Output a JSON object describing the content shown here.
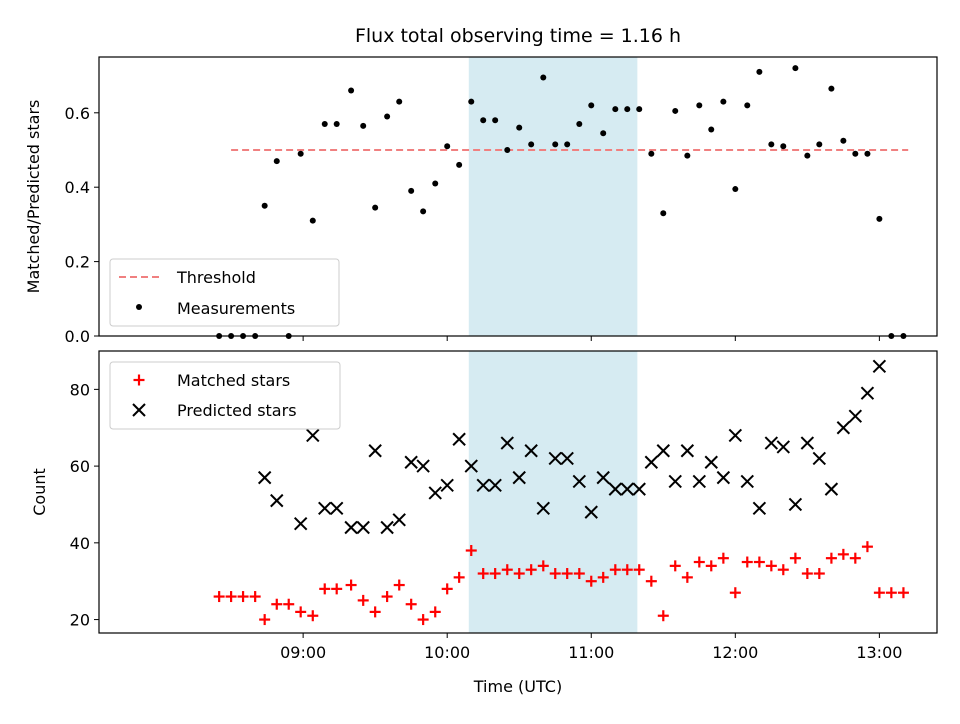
{
  "chart_data": [
    {
      "type": "scatter",
      "title": "Flux total observing time = 1.16 h",
      "xlabel": "",
      "ylabel": "Matched/Predicted stars",
      "ylim": [
        0,
        0.75
      ],
      "yticks": [
        "0.0",
        "0.2",
        "0.4",
        "0.6"
      ],
      "yticks_values": [
        0,
        0.2,
        0.4,
        0.6
      ],
      "threshold": {
        "name": "Threshold",
        "value": 0.5,
        "x_start": 8.5,
        "x_end": 13.2,
        "color": "#f08080"
      },
      "highlight": {
        "x_start": 10.15,
        "x_end": 11.32,
        "color": "#add8e6"
      },
      "legend": {
        "location": "lower-left",
        "entries": [
          "Threshold",
          "Measurements"
        ]
      },
      "series": [
        {
          "name": "Measurements",
          "marker": "dot",
          "color": "#000000",
          "points": [
            [
              8.417,
              0.0
            ],
            [
              8.5,
              0.0
            ],
            [
              8.583,
              0.0
            ],
            [
              8.667,
              0.0
            ],
            [
              8.733,
              0.35
            ],
            [
              8.817,
              0.47
            ],
            [
              8.9,
              0.0
            ],
            [
              8.983,
              0.49
            ],
            [
              9.067,
              0.31
            ],
            [
              9.15,
              0.57
            ],
            [
              9.233,
              0.57
            ],
            [
              9.333,
              0.66
            ],
            [
              9.417,
              0.565
            ],
            [
              9.5,
              0.345
            ],
            [
              9.583,
              0.59
            ],
            [
              9.667,
              0.63
            ],
            [
              9.75,
              0.39
            ],
            [
              9.833,
              0.335
            ],
            [
              9.917,
              0.41
            ],
            [
              10.0,
              0.51
            ],
            [
              10.083,
              0.46
            ],
            [
              10.167,
              0.63
            ],
            [
              10.25,
              0.58
            ],
            [
              10.333,
              0.58
            ],
            [
              10.417,
              0.5
            ],
            [
              10.5,
              0.56
            ],
            [
              10.583,
              0.515
            ],
            [
              10.667,
              0.695
            ],
            [
              10.75,
              0.515
            ],
            [
              10.833,
              0.515
            ],
            [
              10.917,
              0.57
            ],
            [
              11.0,
              0.62
            ],
            [
              11.083,
              0.545
            ],
            [
              11.167,
              0.61
            ],
            [
              11.25,
              0.61
            ],
            [
              11.333,
              0.61
            ],
            [
              11.417,
              0.49
            ],
            [
              11.5,
              0.33
            ],
            [
              11.583,
              0.605
            ],
            [
              11.667,
              0.485
            ],
            [
              11.75,
              0.62
            ],
            [
              11.833,
              0.555
            ],
            [
              11.917,
              0.63
            ],
            [
              12.0,
              0.395
            ],
            [
              12.083,
              0.62
            ],
            [
              12.167,
              0.71
            ],
            [
              12.25,
              0.515
            ],
            [
              12.333,
              0.51
            ],
            [
              12.417,
              0.72
            ],
            [
              12.5,
              0.485
            ],
            [
              12.583,
              0.515
            ],
            [
              12.667,
              0.665
            ],
            [
              12.75,
              0.525
            ],
            [
              12.833,
              0.49
            ],
            [
              12.917,
              0.49
            ],
            [
              13.0,
              0.315
            ],
            [
              13.083,
              0.0
            ],
            [
              13.167,
              0.0
            ]
          ]
        }
      ]
    },
    {
      "type": "scatter",
      "title": "",
      "xlabel": "Time (UTC)",
      "ylabel": "Count",
      "ylim": [
        16.5,
        90
      ],
      "yticks": [
        "20",
        "40",
        "60",
        "80"
      ],
      "yticks_values": [
        20,
        40,
        60,
        80
      ],
      "xlim": [
        7.583,
        13.4
      ],
      "xticks": [
        "09:00",
        "10:00",
        "11:00",
        "12:00",
        "13:00"
      ],
      "xticks_values": [
        9,
        10,
        11,
        12,
        13
      ],
      "highlight": {
        "x_start": 10.15,
        "x_end": 11.32,
        "color": "#add8e6"
      },
      "legend": {
        "location": "upper-left",
        "entries": [
          "Matched stars",
          "Predicted stars"
        ]
      },
      "series": [
        {
          "name": "Matched stars",
          "marker": "plus",
          "color": "#ff0000",
          "points": [
            [
              8.417,
              26
            ],
            [
              8.5,
              26
            ],
            [
              8.583,
              26
            ],
            [
              8.667,
              26
            ],
            [
              8.733,
              20
            ],
            [
              8.817,
              24
            ],
            [
              8.9,
              24
            ],
            [
              8.983,
              22
            ],
            [
              9.067,
              21
            ],
            [
              9.15,
              28
            ],
            [
              9.233,
              28
            ],
            [
              9.333,
              29
            ],
            [
              9.417,
              25
            ],
            [
              9.5,
              22
            ],
            [
              9.583,
              26
            ],
            [
              9.667,
              29
            ],
            [
              9.75,
              24
            ],
            [
              9.833,
              20
            ],
            [
              9.917,
              22
            ],
            [
              10.0,
              28
            ],
            [
              10.083,
              31
            ],
            [
              10.167,
              38
            ],
            [
              10.25,
              32
            ],
            [
              10.333,
              32
            ],
            [
              10.417,
              33
            ],
            [
              10.5,
              32
            ],
            [
              10.583,
              33
            ],
            [
              10.667,
              34
            ],
            [
              10.75,
              32
            ],
            [
              10.833,
              32
            ],
            [
              10.917,
              32
            ],
            [
              11.0,
              30
            ],
            [
              11.083,
              31
            ],
            [
              11.167,
              33
            ],
            [
              11.25,
              33
            ],
            [
              11.333,
              33
            ],
            [
              11.417,
              30
            ],
            [
              11.5,
              21
            ],
            [
              11.583,
              34
            ],
            [
              11.667,
              31
            ],
            [
              11.75,
              35
            ],
            [
              11.833,
              34
            ],
            [
              11.917,
              36
            ],
            [
              12.0,
              27
            ],
            [
              12.083,
              35
            ],
            [
              12.167,
              35
            ],
            [
              12.25,
              34
            ],
            [
              12.333,
              33
            ],
            [
              12.417,
              36
            ],
            [
              12.5,
              32
            ],
            [
              12.583,
              32
            ],
            [
              12.667,
              36
            ],
            [
              12.75,
              37
            ],
            [
              12.833,
              36
            ],
            [
              12.917,
              39
            ],
            [
              13.0,
              27
            ],
            [
              13.083,
              27
            ],
            [
              13.167,
              27
            ]
          ]
        },
        {
          "name": "Predicted stars",
          "marker": "x",
          "color": "#000000",
          "points": [
            [
              8.733,
              57
            ],
            [
              8.817,
              51
            ],
            [
              8.983,
              45
            ],
            [
              9.067,
              68
            ],
            [
              9.15,
              49
            ],
            [
              9.233,
              49
            ],
            [
              9.333,
              44
            ],
            [
              9.417,
              44
            ],
            [
              9.5,
              64
            ],
            [
              9.583,
              44
            ],
            [
              9.667,
              46
            ],
            [
              9.75,
              61
            ],
            [
              9.833,
              60
            ],
            [
              9.917,
              53
            ],
            [
              10.0,
              55
            ],
            [
              10.083,
              67
            ],
            [
              10.167,
              60
            ],
            [
              10.25,
              55
            ],
            [
              10.333,
              55
            ],
            [
              10.417,
              66
            ],
            [
              10.5,
              57
            ],
            [
              10.583,
              64
            ],
            [
              10.667,
              49
            ],
            [
              10.75,
              62
            ],
            [
              10.833,
              62
            ],
            [
              10.917,
              56
            ],
            [
              11.0,
              48
            ],
            [
              11.083,
              57
            ],
            [
              11.167,
              54
            ],
            [
              11.25,
              54
            ],
            [
              11.333,
              54
            ],
            [
              11.417,
              61
            ],
            [
              11.5,
              64
            ],
            [
              11.583,
              56
            ],
            [
              11.667,
              64
            ],
            [
              11.75,
              56
            ],
            [
              11.833,
              61
            ],
            [
              11.917,
              57
            ],
            [
              12.0,
              68
            ],
            [
              12.083,
              56
            ],
            [
              12.167,
              49
            ],
            [
              12.25,
              66
            ],
            [
              12.333,
              65
            ],
            [
              12.417,
              50
            ],
            [
              12.5,
              66
            ],
            [
              12.583,
              62
            ],
            [
              12.667,
              54
            ],
            [
              12.75,
              70
            ],
            [
              12.833,
              73
            ],
            [
              12.917,
              79
            ],
            [
              13.0,
              86
            ]
          ]
        }
      ]
    }
  ]
}
